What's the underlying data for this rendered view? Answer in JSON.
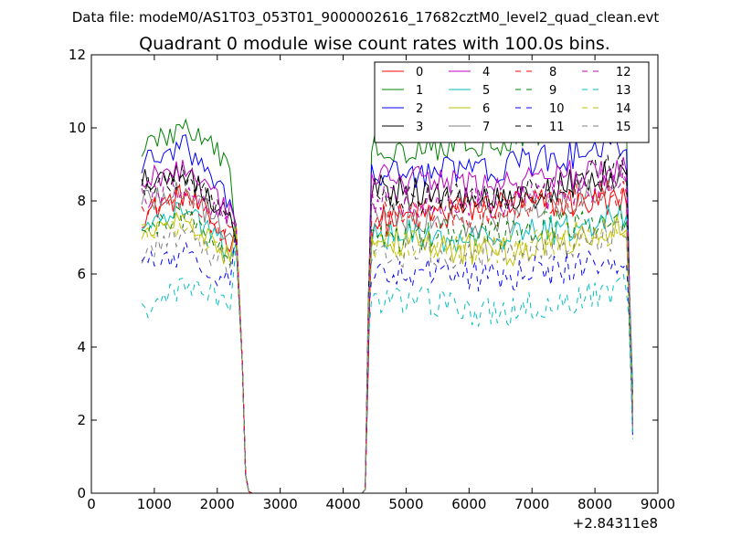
{
  "header": {
    "supertitle": "Data file: modeM0/AS1T03_053T01_9000002616_17682cztM0_level2_quad_clean.evt"
  },
  "chart_data": {
    "type": "line",
    "title": "Quadrant 0 module wise count rates with 100.0s bins.",
    "xlabel": "",
    "ylabel": "",
    "x_offset_label": "+2.84311e8",
    "xlim": [
      0,
      9000
    ],
    "ylim": [
      0,
      12
    ],
    "x_ticks": [
      0,
      1000,
      2000,
      3000,
      4000,
      5000,
      6000,
      7000,
      8000,
      9000
    ],
    "y_ticks": [
      0,
      2,
      4,
      6,
      8,
      10,
      12
    ],
    "grid": false,
    "legend_position": "top-right",
    "legend_columns": 4,
    "segments": [
      {
        "x_start": 800,
        "x_end": 2200,
        "step": 50
      },
      {
        "x_start": 4450,
        "x_end": 8500,
        "step": 50
      }
    ],
    "transitions": {
      "drop": [
        [
          2300,
          7.0
        ],
        [
          2400,
          3.5
        ],
        [
          2450,
          0.5
        ],
        [
          2500,
          0.05
        ],
        [
          2550,
          0.0
        ]
      ],
      "zero_x": [
        2700,
        3000,
        3500,
        4000,
        4300
      ],
      "rise": [
        [
          4350,
          0.1
        ],
        [
          4400,
          4.5
        ]
      ],
      "end": [
        [
          8550,
          5.0
        ],
        [
          8600,
          2.2
        ]
      ]
    },
    "series": [
      {
        "name": "0",
        "color": "#ff0000",
        "dash": false,
        "seg1": [
          7.6,
          8.2,
          6.9
        ],
        "seg2": [
          7.4,
          7.9,
          8.0
        ]
      },
      {
        "name": "1",
        "color": "#008000",
        "dash": false,
        "seg1": [
          9.5,
          10.0,
          9.0
        ],
        "seg2": [
          9.4,
          9.7,
          10.2
        ]
      },
      {
        "name": "2",
        "color": "#0000ff",
        "dash": false,
        "seg1": [
          9.0,
          9.5,
          8.0
        ],
        "seg2": [
          8.7,
          8.9,
          9.5
        ]
      },
      {
        "name": "3",
        "color": "#000000",
        "dash": false,
        "seg1": [
          8.6,
          8.8,
          7.5
        ],
        "seg2": [
          8.3,
          8.0,
          8.8
        ]
      },
      {
        "name": "4",
        "color": "#bf00bf",
        "dash": false,
        "seg1": [
          8.6,
          8.9,
          7.6
        ],
        "seg2": [
          8.6,
          8.4,
          8.9
        ]
      },
      {
        "name": "5",
        "color": "#00bfbf",
        "dash": false,
        "seg1": [
          7.3,
          7.8,
          6.6
        ],
        "seg2": [
          7.1,
          6.9,
          7.7
        ]
      },
      {
        "name": "6",
        "color": "#bfbf00",
        "dash": false,
        "seg1": [
          7.0,
          7.5,
          6.4
        ],
        "seg2": [
          7.0,
          6.6,
          7.3
        ]
      },
      {
        "name": "7",
        "color": "#808080",
        "dash": false,
        "seg1": [
          7.9,
          8.3,
          7.0
        ],
        "seg2": [
          7.6,
          7.4,
          8.6
        ]
      },
      {
        "name": "8",
        "color": "#ff0000",
        "dash": true,
        "seg1": [
          7.8,
          8.1,
          7.0
        ],
        "seg2": [
          7.6,
          7.7,
          8.3
        ]
      },
      {
        "name": "9",
        "color": "#008000",
        "dash": true,
        "seg1": [
          7.1,
          7.6,
          6.5
        ],
        "seg2": [
          7.0,
          7.1,
          7.6
        ]
      },
      {
        "name": "10",
        "color": "#0000ff",
        "dash": true,
        "seg1": [
          6.2,
          6.6,
          5.8
        ],
        "seg2": [
          6.2,
          5.9,
          6.4
        ]
      },
      {
        "name": "11",
        "color": "#000000",
        "dash": true,
        "seg1": [
          8.4,
          8.7,
          7.6
        ],
        "seg2": [
          8.1,
          8.1,
          9.0
        ]
      },
      {
        "name": "12",
        "color": "#bf00bf",
        "dash": true,
        "seg1": [
          8.1,
          8.4,
          7.3
        ],
        "seg2": [
          8.0,
          7.9,
          8.6
        ]
      },
      {
        "name": "13",
        "color": "#00bfbf",
        "dash": true,
        "seg1": [
          4.9,
          5.7,
          5.3
        ],
        "seg2": [
          5.4,
          4.9,
          5.6
        ]
      },
      {
        "name": "14",
        "color": "#bfbf00",
        "dash": true,
        "seg1": [
          7.0,
          7.3,
          6.5
        ],
        "seg2": [
          6.8,
          6.7,
          7.3
        ]
      },
      {
        "name": "15",
        "color": "#808080",
        "dash": true,
        "seg1": [
          6.6,
          7.1,
          6.2
        ],
        "seg2": [
          6.6,
          6.6,
          7.1
        ]
      }
    ]
  }
}
